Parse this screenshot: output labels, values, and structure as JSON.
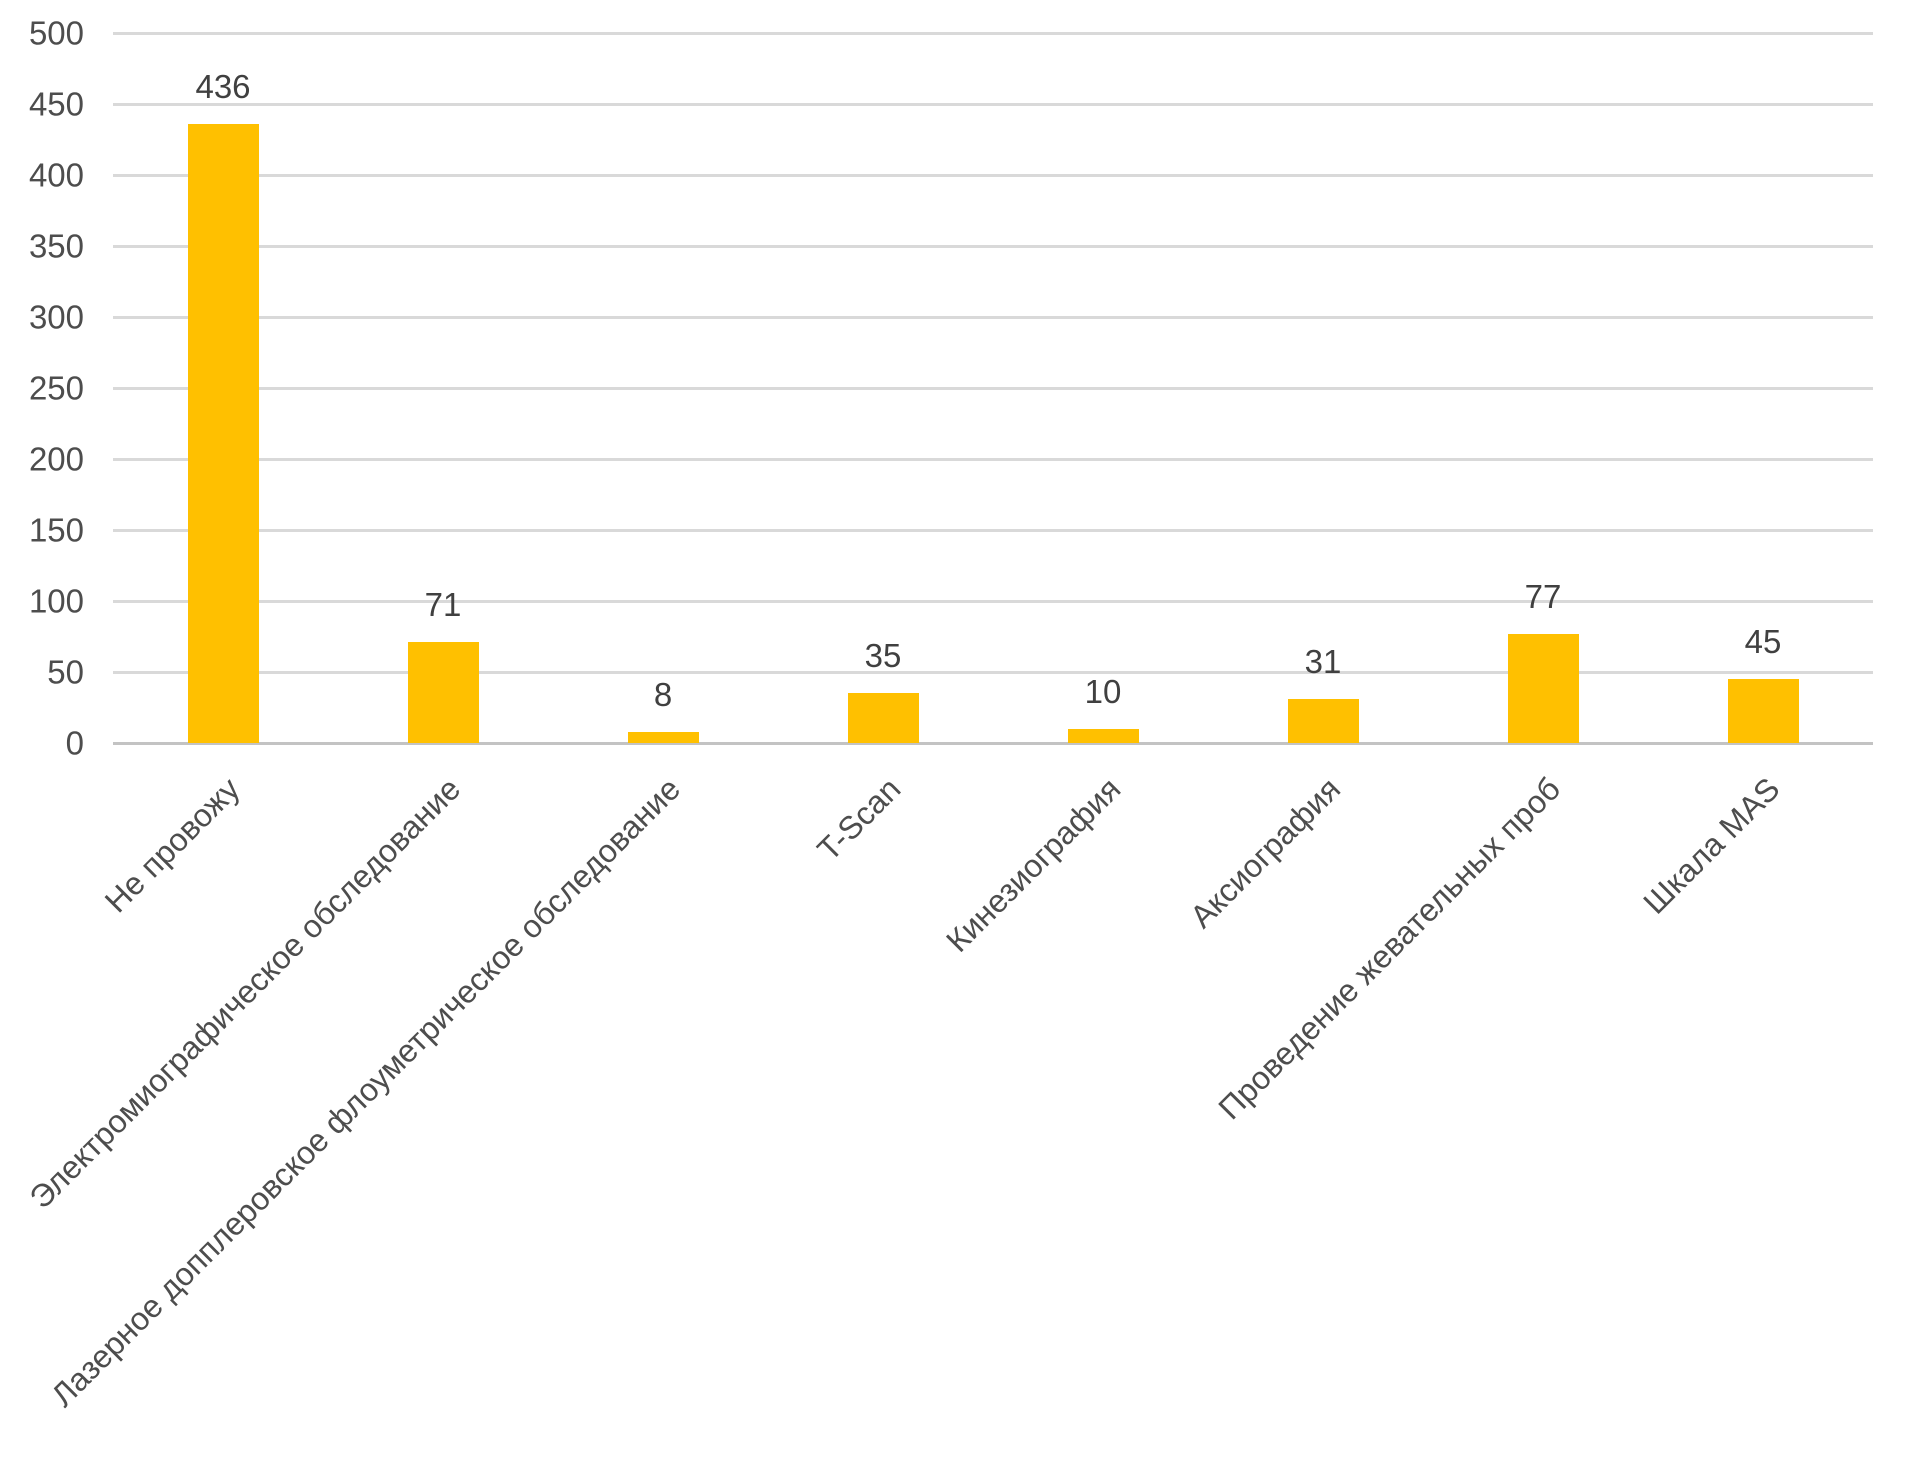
{
  "chart_data": {
    "type": "bar",
    "categories": [
      "Не провожу",
      "Электромиографическое обследование",
      "Лазерное допплеровское флоуметрическое обследование",
      "T-Scan",
      "Кинезиография",
      "Аксиография",
      "Проведение жевательных проб",
      "Шкала MAS"
    ],
    "values": [
      436,
      71,
      8,
      35,
      10,
      31,
      77,
      45
    ],
    "title": "",
    "xlabel": "",
    "ylabel": "",
    "ylim": [
      0,
      500
    ],
    "yticks": [
      0,
      50,
      100,
      150,
      200,
      250,
      300,
      350,
      400,
      450,
      500
    ],
    "grid": true,
    "legend": false,
    "data_labels": true,
    "bar_color": "#ffc000",
    "gridline_color": "#d9d9d9",
    "label_color": "#4d4d4d",
    "value_label_color": "#404040"
  }
}
